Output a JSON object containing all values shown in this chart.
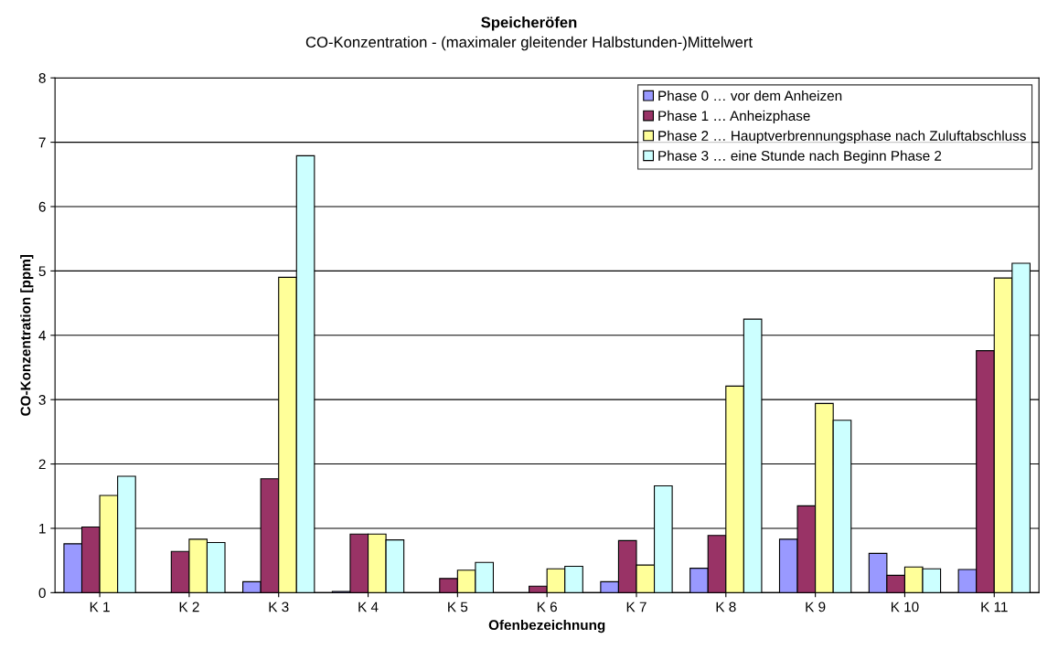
{
  "chart_data": {
    "type": "bar",
    "title": "Speicheröfen",
    "subtitle": "CO-Konzentration - (maximaler gleitender Halbstunden-)Mittelwert",
    "xlabel": "Ofenbezeichnung",
    "ylabel": "CO-Konzentration [ppm]",
    "categories": [
      "K 1",
      "K 2",
      "K 3",
      "K 4",
      "K 5",
      "K 6",
      "K 7",
      "K 8",
      "K 9",
      "K 10",
      "K 11"
    ],
    "series": [
      {
        "name": "Phase 0 … vor dem Anheizen",
        "color": "#9999ff",
        "values": [
          0.76,
          null,
          0.17,
          0.02,
          null,
          null,
          0.17,
          0.38,
          0.83,
          0.61,
          0.36
        ]
      },
      {
        "name": "Phase 1 … Anheizphase",
        "color": "#993366",
        "values": [
          1.02,
          0.64,
          1.77,
          0.91,
          0.22,
          0.1,
          0.81,
          0.89,
          1.35,
          0.27,
          3.76
        ]
      },
      {
        "name": "Phase 2 … Hauptverbrennungsphase nach Zuluftabschluss",
        "color": "#ffff99",
        "values": [
          1.51,
          0.83,
          4.9,
          0.91,
          0.35,
          0.37,
          0.43,
          3.21,
          2.94,
          0.4,
          4.89
        ]
      },
      {
        "name": "Phase 3 … eine Stunde nach Beginn Phase 2",
        "color": "#ccffff",
        "values": [
          1.81,
          0.78,
          6.79,
          0.82,
          0.47,
          0.41,
          1.66,
          4.25,
          2.68,
          0.37,
          5.12
        ]
      }
    ],
    "ylim": [
      0,
      8
    ],
    "yticks": [
      0,
      1,
      2,
      3,
      4,
      5,
      6,
      7,
      8
    ],
    "grid": "y",
    "legend": "top right"
  }
}
